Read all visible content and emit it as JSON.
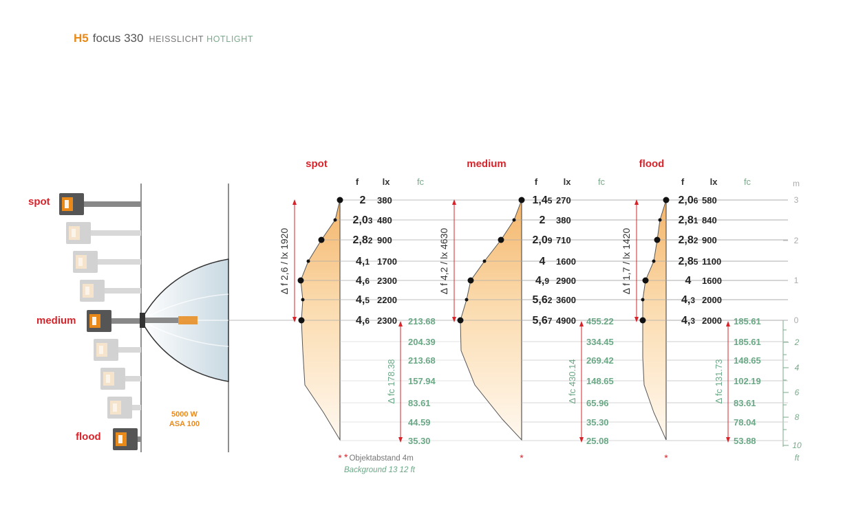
{
  "header": {
    "code": "H5",
    "name": "focus 330",
    "label_de": "HEISSLICHT",
    "label_en": "HOTLIGHT"
  },
  "lamp": {
    "labels": {
      "spot": "spot",
      "medium": "medium",
      "flood": "flood"
    },
    "power": "5000 W",
    "asa": "ASA 100"
  },
  "columns": {
    "f": "f",
    "lx": "lx",
    "fc": "fc"
  },
  "scale": {
    "unit_m": "m",
    "unit_ft": "ft",
    "m_ticks": [
      "3",
      "2",
      "1",
      "0"
    ],
    "ft_ticks": [
      "2",
      "4",
      "6",
      "8",
      "10"
    ]
  },
  "note": {
    "marker": "*",
    "distance": "Objektabstand 4m",
    "background": "Background 13 12 ft"
  },
  "charts": [
    {
      "title": "spot",
      "left_label": "Δ f 2,6 / lx 1920",
      "right_label": "Δ fc 178.38",
      "rows": [
        {
          "f": "2",
          "f_sub": "",
          "lx": "380"
        },
        {
          "f": "2,0",
          "f_sub": "3",
          "lx": "480"
        },
        {
          "f": "2,8",
          "f_sub": "2",
          "lx": "900"
        },
        {
          "f": "4,",
          "f_sub": "1",
          "lx": "1700"
        },
        {
          "f": "4,",
          "f_sub": "6",
          "lx": "2300"
        },
        {
          "f": "4,",
          "f_sub": "5",
          "lx": "2200"
        },
        {
          "f": "4,",
          "f_sub": "6",
          "lx": "2300"
        }
      ],
      "fc": [
        "213.68",
        "204.39",
        "213.68",
        "157.94",
        "83.61",
        "44.59",
        "35.30"
      ]
    },
    {
      "title": "medium",
      "left_label": "Δ f 4,2 / lx 4630",
      "right_label": "Δ fc 430.14",
      "rows": [
        {
          "f": "1,4",
          "f_sub": "5",
          "lx": "270"
        },
        {
          "f": "2",
          "f_sub": "",
          "lx": "380"
        },
        {
          "f": "2,0",
          "f_sub": "9",
          "lx": "710"
        },
        {
          "f": "4",
          "f_sub": "",
          "lx": "1600"
        },
        {
          "f": "4,",
          "f_sub": "9",
          "lx": "2900"
        },
        {
          "f": "5,6",
          "f_sub": "2",
          "lx": "3600"
        },
        {
          "f": "5,6",
          "f_sub": "7",
          "lx": "4900"
        }
      ],
      "fc": [
        "455.22",
        "334.45",
        "269.42",
        "148.65",
        "65.96",
        "35.30",
        "25.08"
      ]
    },
    {
      "title": "flood",
      "left_label": "Δ f 1,7 / lx 1420",
      "right_label": "Δ fc 131.73",
      "rows": [
        {
          "f": "2,0",
          "f_sub": "6",
          "lx": "580"
        },
        {
          "f": "2,8",
          "f_sub": "1",
          "lx": "840"
        },
        {
          "f": "2,8",
          "f_sub": "2",
          "lx": "900"
        },
        {
          "f": "2,8",
          "f_sub": "5",
          "lx": "1100"
        },
        {
          "f": "4",
          "f_sub": "",
          "lx": "1600"
        },
        {
          "f": "4,",
          "f_sub": "3",
          "lx": "2000"
        },
        {
          "f": "4,",
          "f_sub": "3",
          "lx": "2000"
        }
      ],
      "fc": [
        "185.61",
        "185.61",
        "148.65",
        "102.19",
        "83.61",
        "78.04",
        "53.88"
      ]
    }
  ]
}
